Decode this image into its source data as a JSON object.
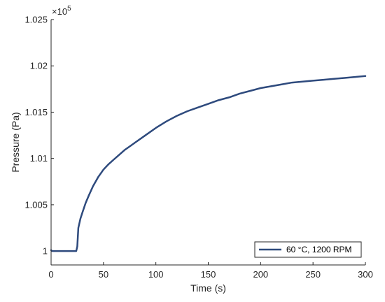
{
  "chart_data": {
    "type": "line",
    "title": "",
    "xlabel": "Time (s)",
    "ylabel": "Pressure (Pa)",
    "y_exponent_label": "×10",
    "y_exponent_power": "5",
    "xlim": [
      0,
      300
    ],
    "ylim": [
      0.9985,
      1.025
    ],
    "x_ticks": [
      0,
      50,
      100,
      150,
      200,
      250,
      300
    ],
    "x_tick_labels": [
      "0",
      "50",
      "100",
      "150",
      "200",
      "250",
      "300"
    ],
    "y_ticks": [
      1.0,
      1.005,
      1.01,
      1.015,
      1.02,
      1.025
    ],
    "y_tick_labels": [
      "1",
      "1.005",
      "1.01",
      "1.015",
      "1.02",
      "1.025"
    ],
    "grid": false,
    "legend_position": "bottom-right",
    "series": [
      {
        "name": "60 °C, 1200 RPM",
        "color": "#2e4a7d",
        "x": [
          0,
          1,
          3,
          10,
          20,
          24,
          25,
          26,
          28,
          30,
          33,
          36,
          40,
          45,
          50,
          55,
          60,
          65,
          70,
          75,
          80,
          90,
          100,
          110,
          120,
          130,
          140,
          150,
          160,
          170,
          180,
          190,
          200,
          210,
          220,
          230,
          240,
          250,
          260,
          270,
          280,
          290,
          300
        ],
        "y": [
          1.0001,
          1.0,
          1.0,
          1.0,
          1.0,
          1.0,
          1.0005,
          1.0025,
          1.0035,
          1.0042,
          1.0052,
          1.006,
          1.007,
          1.008,
          1.0088,
          1.0094,
          1.0099,
          1.0104,
          1.0109,
          1.0113,
          1.0117,
          1.0125,
          1.0133,
          1.014,
          1.0146,
          1.0151,
          1.0155,
          1.0159,
          1.0163,
          1.0166,
          1.017,
          1.0173,
          1.0176,
          1.0178,
          1.018,
          1.0182,
          1.0183,
          1.0184,
          1.0185,
          1.0186,
          1.0187,
          1.0188,
          1.0189
        ]
      }
    ]
  }
}
